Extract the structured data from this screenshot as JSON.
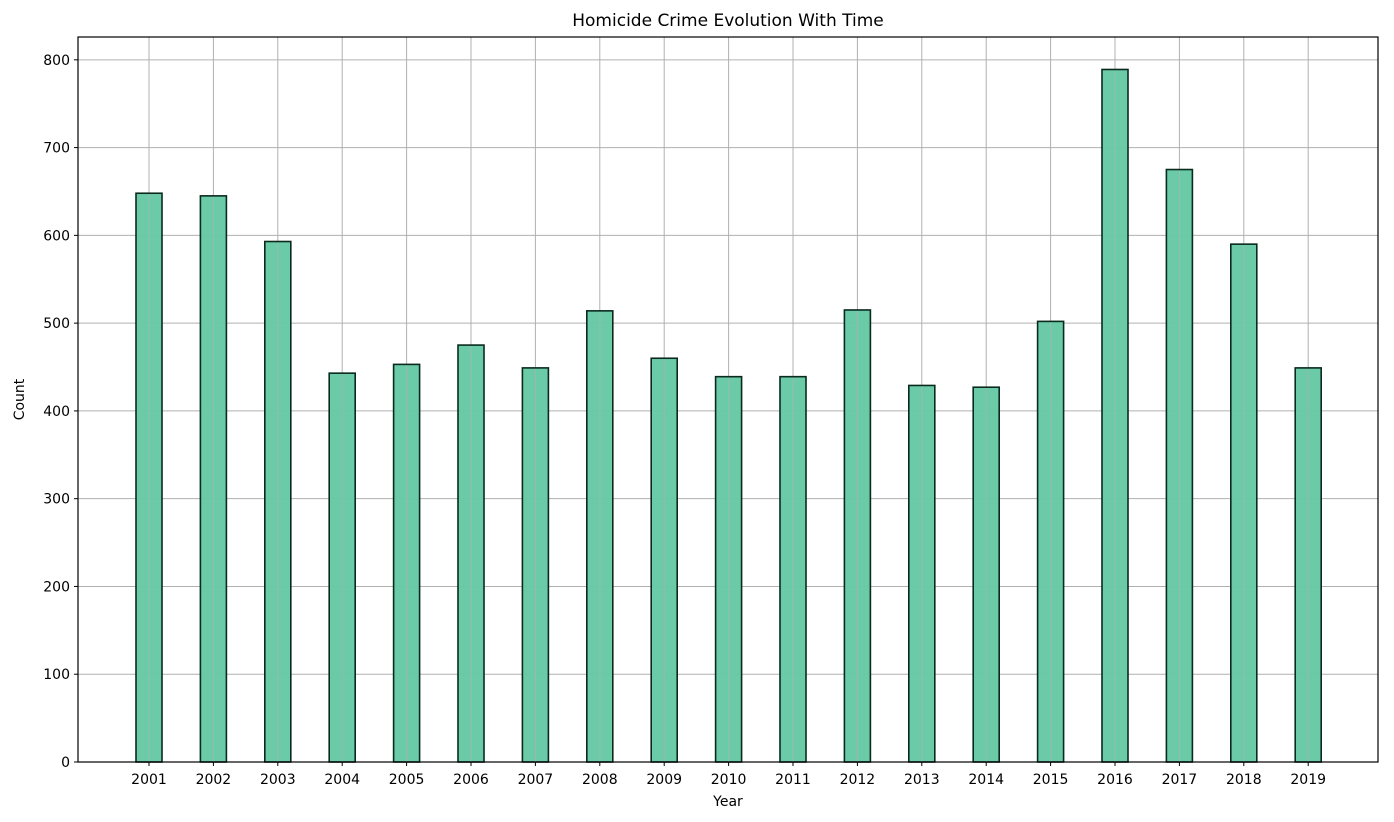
{
  "chart_data": {
    "type": "bar",
    "title": "Homicide Crime Evolution With Time",
    "xlabel": "Year",
    "ylabel": "Count",
    "categories": [
      "2001",
      "2002",
      "2003",
      "2004",
      "2005",
      "2006",
      "2007",
      "2008",
      "2009",
      "2010",
      "2011",
      "2012",
      "2013",
      "2014",
      "2015",
      "2016",
      "2017",
      "2018",
      "2019"
    ],
    "values": [
      648,
      645,
      593,
      443,
      453,
      475,
      449,
      514,
      460,
      439,
      439,
      515,
      429,
      427,
      502,
      789,
      675,
      590,
      449
    ],
    "ylim": [
      0,
      826
    ],
    "yticks": [
      0,
      100,
      200,
      300,
      400,
      500,
      600,
      700,
      800
    ],
    "grid": true,
    "bar_color": "#66c9a6",
    "edge_color": "#0a2a1e"
  }
}
